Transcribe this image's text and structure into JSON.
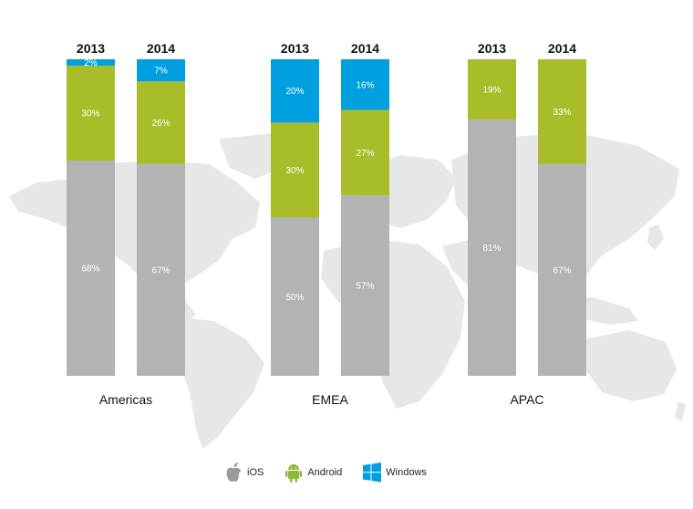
{
  "chart_data": {
    "type": "bar",
    "stacked": true,
    "unit": "%",
    "groups": [
      {
        "name": "Americas",
        "bars": [
          {
            "year": "2013",
            "values": {
              "iOS": 68,
              "Android": 30,
              "Windows": 2
            },
            "labels": {
              "iOS": "68%",
              "Android": "30%",
              "Windows": "2%"
            }
          },
          {
            "year": "2014",
            "values": {
              "iOS": 67,
              "Android": 26,
              "Windows": 7
            },
            "labels": {
              "iOS": "67%",
              "Android": "26%",
              "Windows": "7%"
            }
          }
        ]
      },
      {
        "name": "EMEA",
        "bars": [
          {
            "year": "2013",
            "values": {
              "iOS": 50,
              "Android": 30,
              "Windows": 20
            },
            "labels": {
              "iOS": "50%",
              "Android": "30%",
              "Windows": "20%"
            }
          },
          {
            "year": "2014",
            "values": {
              "iOS": 57,
              "Android": 27,
              "Windows": 16
            },
            "labels": {
              "iOS": "57%",
              "Android": "27%",
              "Windows": "16%"
            }
          }
        ]
      },
      {
        "name": "APAC",
        "bars": [
          {
            "year": "2013",
            "values": {
              "iOS": 81,
              "Android": 19,
              "Windows": 0
            },
            "labels": {
              "iOS": "81%",
              "Android": "19%",
              "Windows": ""
            }
          },
          {
            "year": "2014",
            "values": {
              "iOS": 67,
              "Android": 33,
              "Windows": 0
            },
            "labels": {
              "iOS": "67%",
              "Android": "33%",
              "Windows": ""
            }
          }
        ]
      }
    ],
    "series": [
      {
        "name": "iOS",
        "color": "#b3b3b3",
        "icon": "apple-icon"
      },
      {
        "name": "Android",
        "color": "#a9bd2b",
        "icon": "android-icon"
      },
      {
        "name": "Windows",
        "color": "#009fdf",
        "icon": "windows-icon"
      }
    ],
    "background": "world-map"
  },
  "legend": [
    {
      "label": "iOS",
      "icon": "apple-icon"
    },
    {
      "label": "Android",
      "icon": "android-icon"
    },
    {
      "label": "Windows",
      "icon": "windows-icon"
    }
  ]
}
